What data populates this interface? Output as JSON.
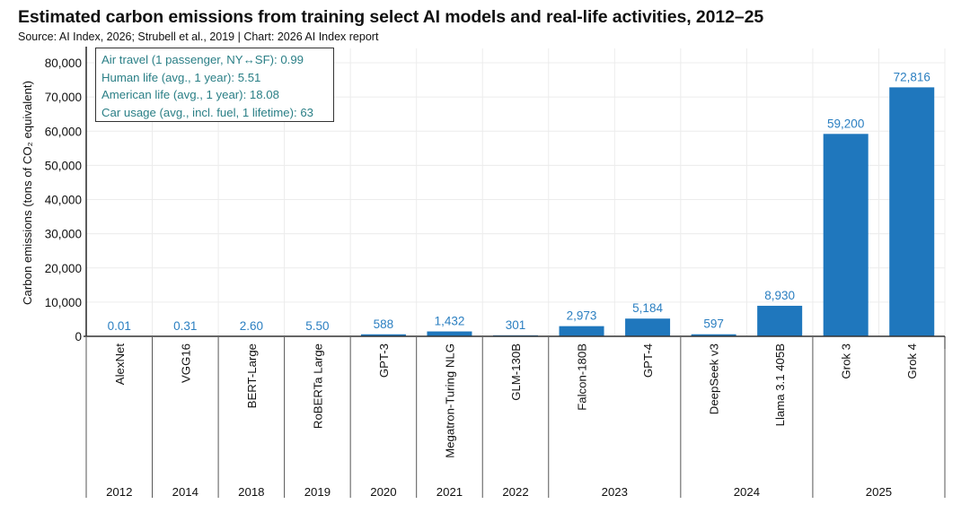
{
  "title": "Estimated carbon emissions from training select AI models and real-life activities, 2012–25",
  "source": "Source: AI Index, 2026; Strubell et al., 2019 | Chart: 2026 AI Index report",
  "legend_box": {
    "lines": [
      "Air travel (1 passenger, NY↔SF): 0.99",
      "Human life (avg., 1 year): 5.51",
      "American life (avg., 1 year): 18.08",
      "Car usage (avg., incl. fuel, 1 lifetime): 63"
    ],
    "text_color": "#2a7f86"
  },
  "colors": {
    "bar": "#1f77bd",
    "label": "#2b7fc1",
    "grid": "#ececec",
    "axis": "#333333"
  },
  "chart_data": {
    "type": "bar",
    "title": "Estimated carbon emissions from training select AI models and real-life activities, 2012–25",
    "xlabel": "",
    "ylabel": "Carbon emissions (tons of CO₂ equivalent)",
    "ylim": [
      0,
      80000
    ],
    "yticks": [
      0,
      10000,
      20000,
      30000,
      40000,
      50000,
      60000,
      70000,
      80000
    ],
    "ytick_labels": [
      "0",
      "10,000",
      "20,000",
      "30,000",
      "40,000",
      "50,000",
      "60,000",
      "70,000",
      "80,000"
    ],
    "grid": true,
    "categories": [
      "AlexNet",
      "VGG16",
      "BERT-Large",
      "RoBERTa Large",
      "GPT-3",
      "Megatron-Turing NLG",
      "GLM-130B",
      "Falcon-180B",
      "GPT-4",
      "DeepSeek v3",
      "Llama 3.1 405B",
      "Grok 3",
      "Grok 4"
    ],
    "values": [
      0.01,
      0.31,
      2.6,
      5.5,
      588,
      1432,
      301,
      2973,
      5184,
      597,
      8930,
      59200,
      72816
    ],
    "value_labels": [
      "0.01",
      "0.31",
      "2.60",
      "5.50",
      "588",
      "1,432",
      "301",
      "2,973",
      "5,184",
      "597",
      "8,930",
      "59,200",
      "72,816"
    ],
    "year_groups": [
      {
        "year": "2012",
        "count": 1
      },
      {
        "year": "2014",
        "count": 1
      },
      {
        "year": "2018",
        "count": 1
      },
      {
        "year": "2019",
        "count": 1
      },
      {
        "year": "2020",
        "count": 1
      },
      {
        "year": "2021",
        "count": 1
      },
      {
        "year": "2022",
        "count": 1
      },
      {
        "year": "2023",
        "count": 2
      },
      {
        "year": "2024",
        "count": 2
      },
      {
        "year": "2025",
        "count": 2
      }
    ]
  }
}
